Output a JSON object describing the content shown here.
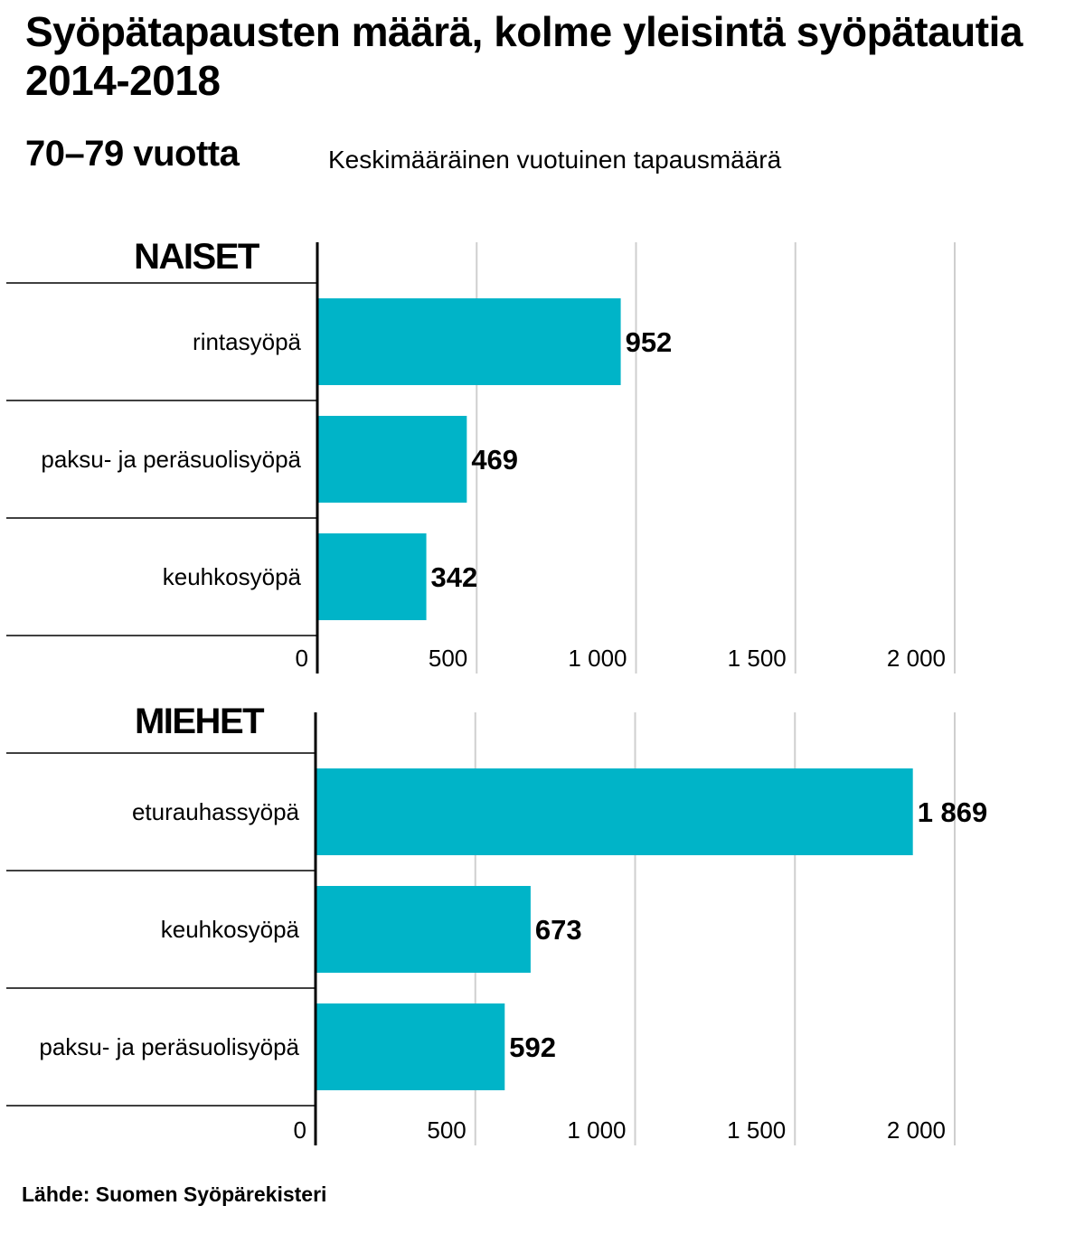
{
  "title": "Syöpätapausten määrä, kolme yleisintä syöpätautia 2014-2018",
  "subtitle": "70–79 vuotta",
  "note": "Keskimääräinen vuotuinen tapausmäärä",
  "source": "Lähde: Suomen Syöpärekisteri",
  "colors": {
    "bar": "#00b4c8",
    "grid": "#cfcfcf",
    "axis": "#000000"
  },
  "chart_data": [
    {
      "type": "bar",
      "orientation": "horizontal",
      "title": "NAISET",
      "categories": [
        "rintasyöpä",
        "paksu- ja peräsuolisyöpä",
        "keuhkosyöpä"
      ],
      "values": [
        952,
        469,
        342
      ],
      "value_labels": [
        "952",
        "469",
        "342"
      ],
      "xlim": [
        0,
        2000
      ],
      "ticks": [
        0,
        500,
        1000,
        1500,
        2000
      ],
      "tick_labels": [
        "0",
        "500",
        "1 000",
        "1 500",
        "2 000"
      ],
      "grid": true
    },
    {
      "type": "bar",
      "orientation": "horizontal",
      "title": "MIEHET",
      "categories": [
        "eturauhassyöpä",
        "keuhkosyöpä",
        "paksu- ja peräsuolisyöpä"
      ],
      "values": [
        1869,
        673,
        592
      ],
      "value_labels": [
        "1 869",
        "673",
        "592"
      ],
      "xlim": [
        0,
        2000
      ],
      "ticks": [
        0,
        500,
        1000,
        1500,
        2000
      ],
      "tick_labels": [
        "0",
        "500",
        "1 000",
        "1 500",
        "2 000"
      ],
      "grid": true
    }
  ]
}
